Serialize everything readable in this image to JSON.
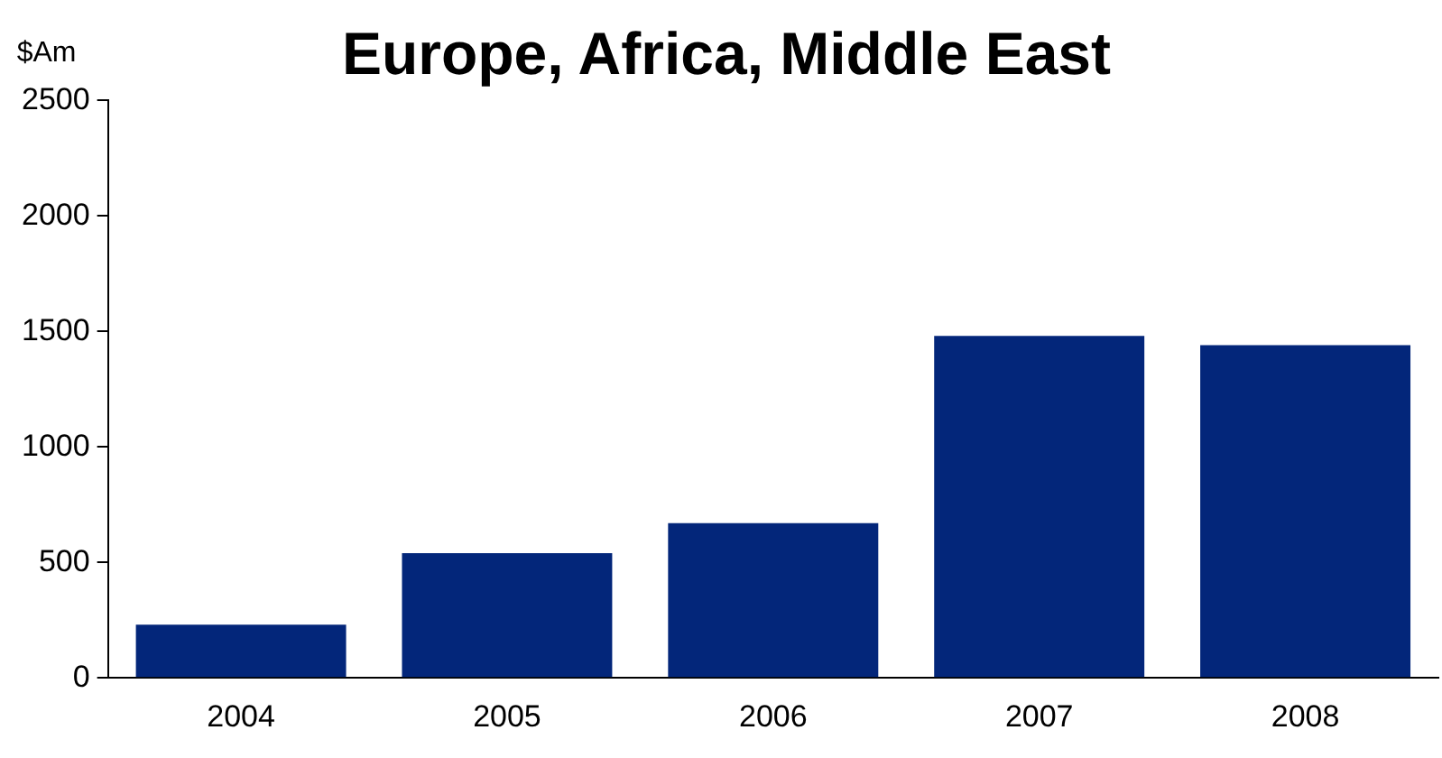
{
  "chart_data": {
    "type": "bar",
    "title": "Europe, Africa, Middle East",
    "ylabel": "$Am",
    "categories": [
      "2004",
      "2005",
      "2006",
      "2007",
      "2008"
    ],
    "values": [
      230,
      540,
      670,
      1480,
      1440
    ],
    "color": "#03267a",
    "ylim": [
      0,
      2500
    ],
    "yticks": [
      0,
      500,
      1000,
      1500,
      2000,
      2500
    ],
    "grid": false,
    "legend": false
  }
}
